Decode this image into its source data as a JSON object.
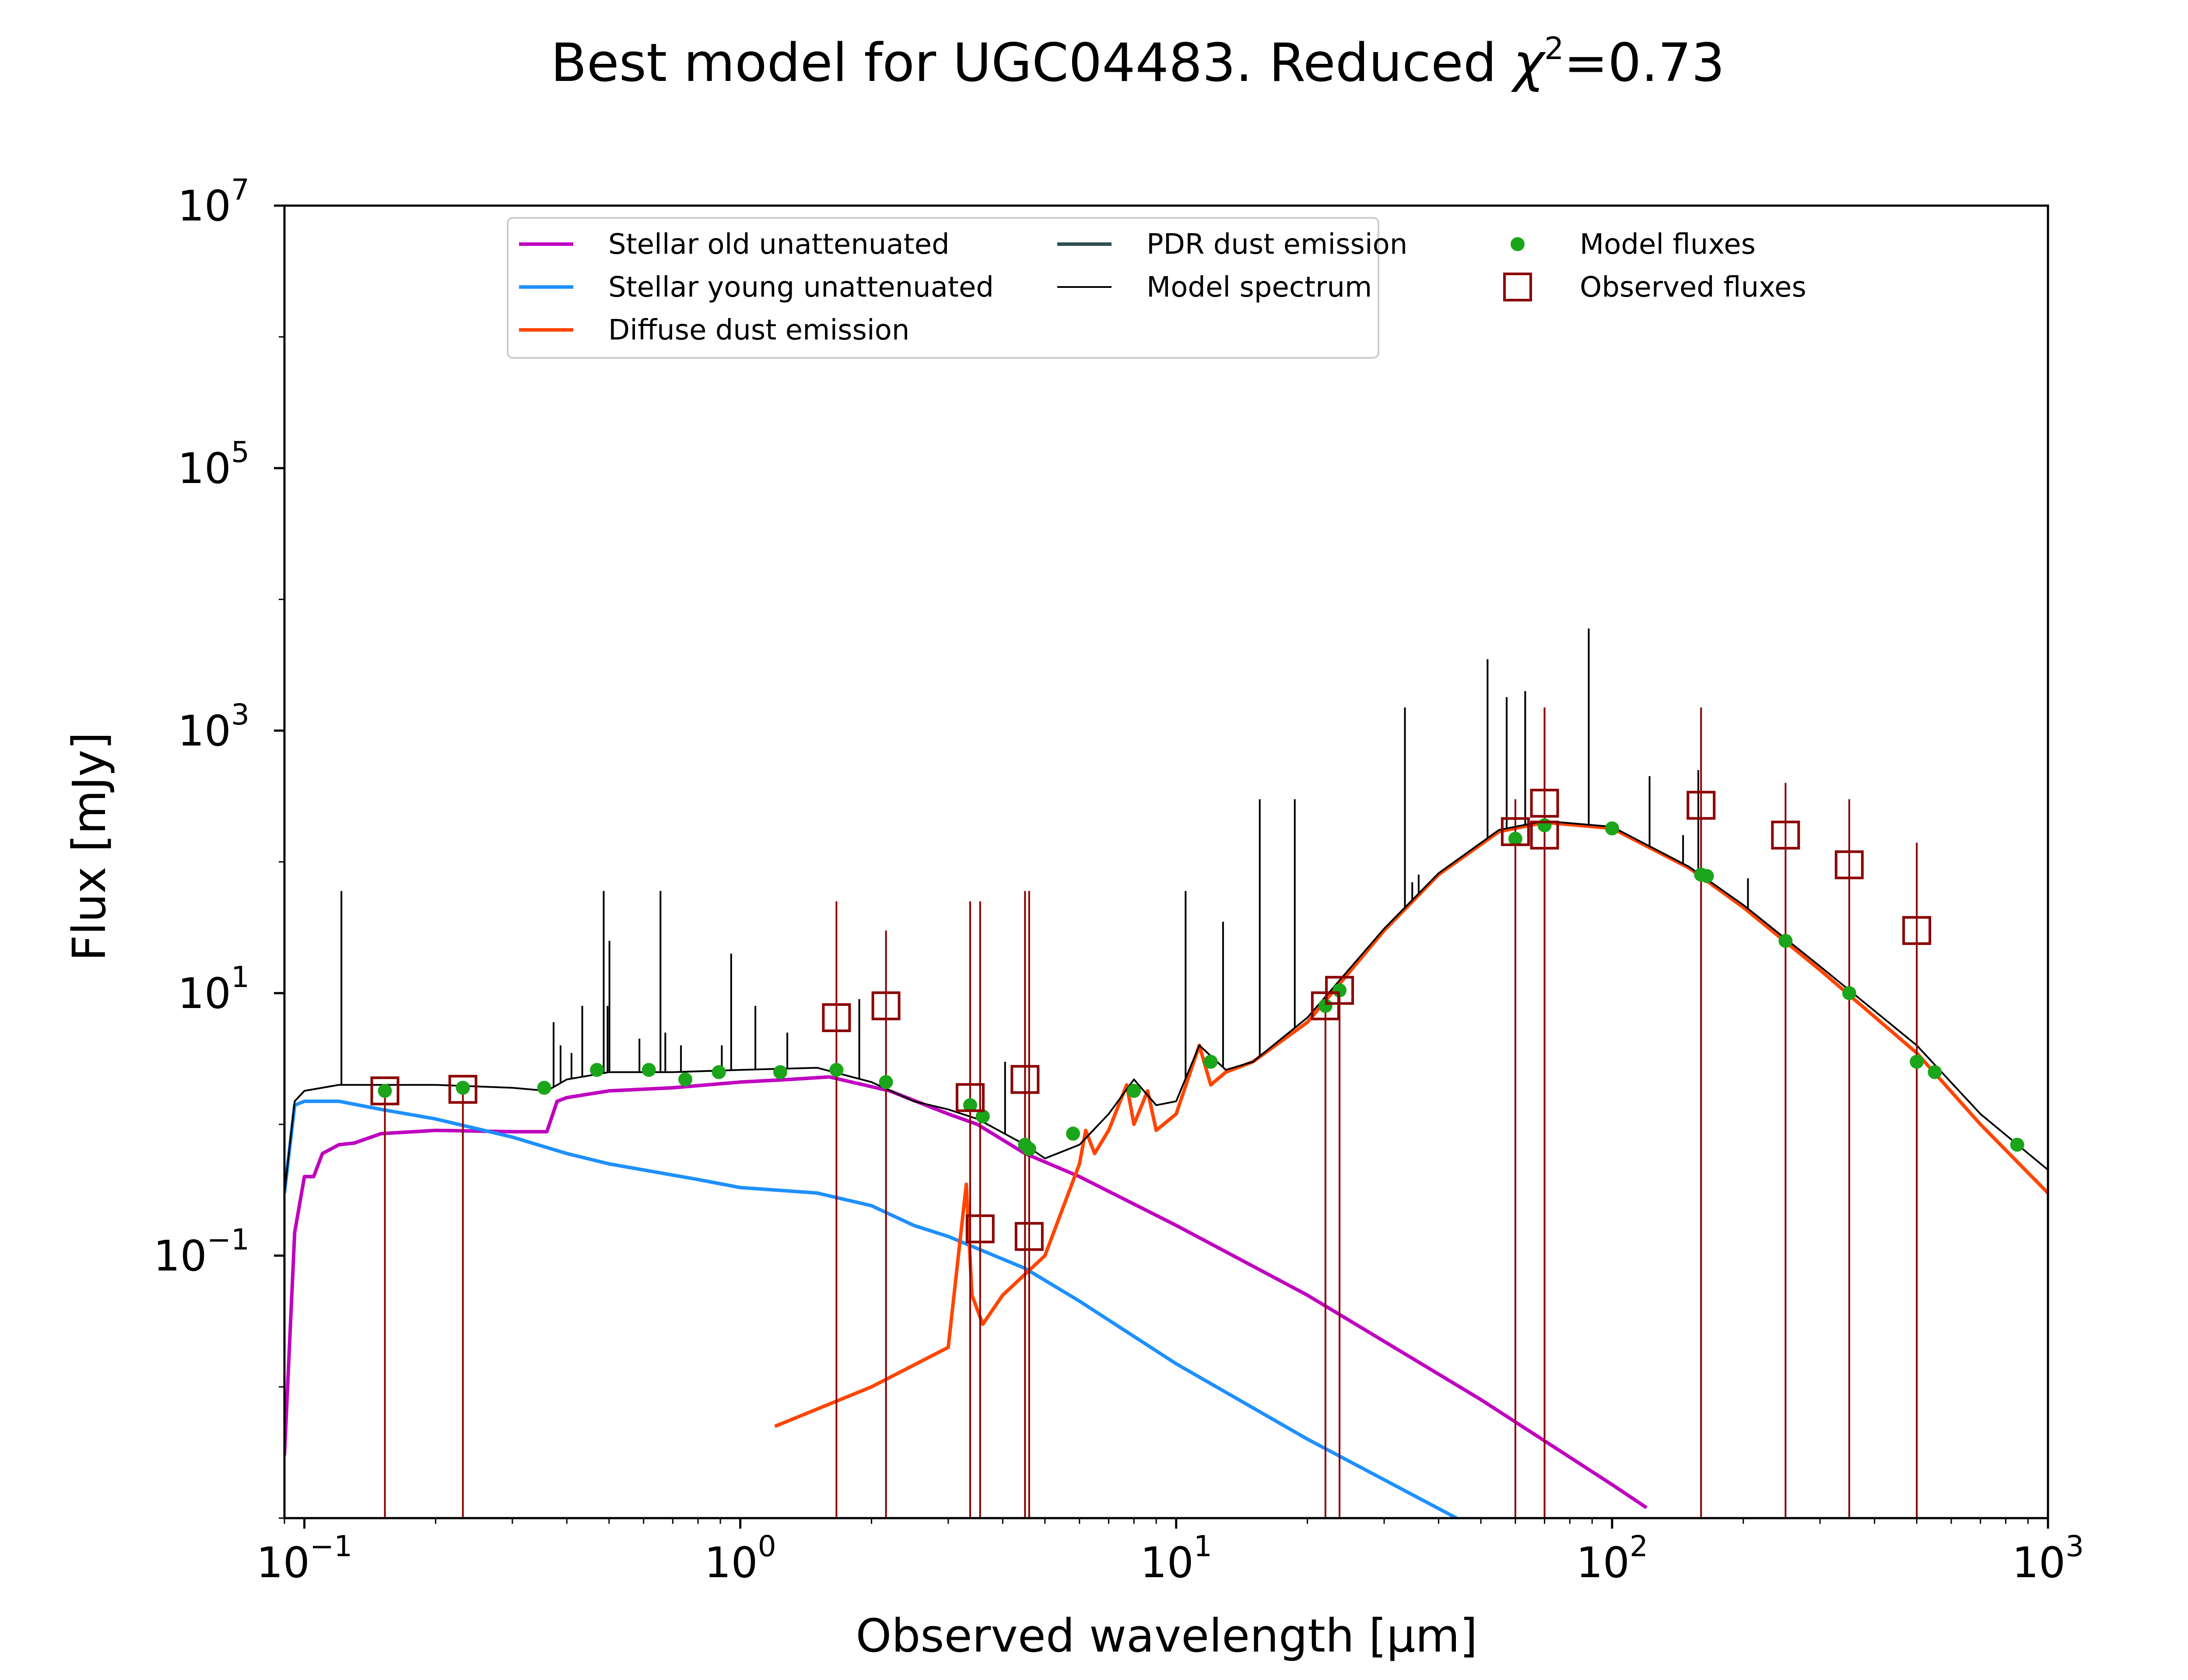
{
  "chart_data": {
    "type": "line",
    "title": "Best model for UGC04483. Reduced",
    "title_chi_symbol": "χ",
    "title_chi_exp": "2",
    "title_chi_value": "=0.73",
    "xlabel": "Observed wavelength [μm]",
    "ylabel": "Flux [mJy]",
    "x_scale": "log",
    "y_scale": "log",
    "xlim": [
      0.09,
      1000
    ],
    "ylim": [
      0.001,
      10000000
    ],
    "grid": false,
    "legend_placement": "top-center",
    "x_ticks": [
      {
        "base": "10",
        "exp": "−1",
        "value": 0.1
      },
      {
        "base": "10",
        "exp": "0",
        "value": 1
      },
      {
        "base": "10",
        "exp": "1",
        "value": 10
      },
      {
        "base": "10",
        "exp": "2",
        "value": 100
      },
      {
        "base": "10",
        "exp": "3",
        "value": 1000
      }
    ],
    "y_ticks": [
      {
        "base": "10",
        "exp": "−1",
        "value": 0.1
      },
      {
        "base": "10",
        "exp": "1",
        "value": 10
      },
      {
        "base": "10",
        "exp": "3",
        "value": 1000
      },
      {
        "base": "10",
        "exp": "5",
        "value": 100000
      },
      {
        "base": "10",
        "exp": "7",
        "value": 10000000
      }
    ],
    "legend": [
      {
        "name": "Stellar old unattenuated",
        "color": "#bf00bf",
        "kind": "line"
      },
      {
        "name": "Stellar young unattenuated",
        "color": "#1e90ff",
        "kind": "line"
      },
      {
        "name": "Diffuse dust emission",
        "color": "#ff4500",
        "kind": "line"
      },
      {
        "name": "PDR dust emission",
        "color": "#2f4f4f",
        "kind": "line"
      },
      {
        "name": "Model spectrum",
        "color": "#000000",
        "kind": "thinline"
      },
      {
        "name": "Model fluxes",
        "color": "#1aa51a",
        "kind": "dot"
      },
      {
        "name": "Observed fluxes",
        "color": "#8b0000",
        "kind": "square"
      }
    ],
    "series": [
      {
        "name": "Stellar old unattenuated",
        "color": "#bf00bf",
        "x": [
          0.09,
          0.095,
          0.1,
          0.105,
          0.11,
          0.12,
          0.13,
          0.15,
          0.2,
          0.3,
          0.36,
          0.38,
          0.4,
          0.5,
          0.7,
          1.0,
          1.3,
          1.6,
          2.2,
          3.0,
          3.5,
          4.5,
          6.0,
          10,
          20,
          50,
          100,
          120
        ],
        "y": [
          0.003,
          0.15,
          0.4,
          0.4,
          0.6,
          0.7,
          0.72,
          0.85,
          0.9,
          0.88,
          0.88,
          1.5,
          1.6,
          1.8,
          1.9,
          2.1,
          2.2,
          2.3,
          1.8,
          1.2,
          1.0,
          0.6,
          0.4,
          0.17,
          0.05,
          0.008,
          0.0018,
          0.0012
        ]
      },
      {
        "name": "Stellar young unattenuated",
        "color": "#1e90ff",
        "x": [
          0.09,
          0.095,
          0.1,
          0.12,
          0.15,
          0.2,
          0.3,
          0.4,
          0.5,
          0.8,
          1.0,
          1.5,
          2.0,
          2.5,
          3.0,
          4.5,
          6.0,
          10,
          20,
          44
        ],
        "y": [
          0.3,
          1.4,
          1.5,
          1.5,
          1.3,
          1.1,
          0.8,
          0.6,
          0.5,
          0.38,
          0.33,
          0.3,
          0.24,
          0.17,
          0.14,
          0.08,
          0.045,
          0.015,
          0.004,
          0.001
        ]
      },
      {
        "name": "Diffuse dust emission",
        "color": "#ff4500",
        "x": [
          1.2,
          2.0,
          3.0,
          3.3,
          3.4,
          3.6,
          4.0,
          5.0,
          6.0,
          6.2,
          6.5,
          7.0,
          7.7,
          8.0,
          8.6,
          9.0,
          10,
          11.3,
          12,
          13,
          15,
          20,
          30,
          40,
          55,
          70,
          100,
          150,
          200,
          300,
          500,
          700,
          1000
        ],
        "y": [
          0.005,
          0.01,
          0.02,
          0.35,
          0.05,
          0.03,
          0.05,
          0.1,
          0.5,
          0.9,
          0.6,
          0.9,
          2.0,
          1.0,
          1.8,
          0.9,
          1.2,
          4.0,
          2.0,
          2.5,
          3.0,
          6.0,
          30,
          80,
          170,
          200,
          180,
          90,
          45,
          15,
          3.5,
          1.0,
          0.3
        ]
      },
      {
        "name": "Model spectrum",
        "color": "#000000",
        "x": [
          0.09,
          0.095,
          0.1,
          0.12,
          0.15,
          0.2,
          0.3,
          0.36,
          0.4,
          0.5,
          0.7,
          1.0,
          1.5,
          2.0,
          2.5,
          3.0,
          3.5,
          4.5,
          5.0,
          6.0,
          7.0,
          8.0,
          9.0,
          10,
          11.3,
          13,
          15,
          20,
          30,
          40,
          55,
          70,
          100,
          150,
          200,
          300,
          500,
          700,
          1000
        ],
        "y": [
          0.3,
          1.5,
          1.8,
          2.0,
          2.0,
          2.0,
          1.9,
          1.8,
          2.2,
          2.5,
          2.5,
          2.6,
          2.7,
          2.1,
          1.5,
          1.3,
          1.1,
          0.7,
          0.55,
          0.7,
          1.2,
          2.2,
          1.4,
          1.5,
          4.0,
          2.6,
          3.0,
          6.5,
          31,
          82,
          175,
          205,
          185,
          92,
          47,
          16,
          4.0,
          1.2,
          0.45
        ]
      }
    ],
    "spectrum_lines": [
      {
        "x": 0.1216,
        "y": 60
      },
      {
        "x": 0.373,
        "y": 6
      },
      {
        "x": 0.387,
        "y": 4
      },
      {
        "x": 0.41,
        "y": 3.5
      },
      {
        "x": 0.434,
        "y": 8
      },
      {
        "x": 0.486,
        "y": 60
      },
      {
        "x": 0.496,
        "y": 8
      },
      {
        "x": 0.501,
        "y": 25
      },
      {
        "x": 0.587,
        "y": 4.5
      },
      {
        "x": 0.656,
        "y": 60
      },
      {
        "x": 0.673,
        "y": 5
      },
      {
        "x": 0.731,
        "y": 4
      },
      {
        "x": 0.907,
        "y": 4
      },
      {
        "x": 0.953,
        "y": 20
      },
      {
        "x": 1.083,
        "y": 8
      },
      {
        "x": 1.282,
        "y": 5
      },
      {
        "x": 1.875,
        "y": 9
      },
      {
        "x": 4.05,
        "y": 3
      },
      {
        "x": 10.51,
        "y": 60
      },
      {
        "x": 12.81,
        "y": 35
      },
      {
        "x": 15.55,
        "y": 300
      },
      {
        "x": 18.71,
        "y": 300
      },
      {
        "x": 33.48,
        "y": 1500
      },
      {
        "x": 34.8,
        "y": 70
      },
      {
        "x": 36.0,
        "y": 80
      },
      {
        "x": 51.8,
        "y": 3500
      },
      {
        "x": 57.3,
        "y": 1800
      },
      {
        "x": 63.2,
        "y": 2000
      },
      {
        "x": 88.4,
        "y": 6000
      },
      {
        "x": 121.9,
        "y": 450
      },
      {
        "x": 145.5,
        "y": 160
      },
      {
        "x": 157.7,
        "y": 500
      },
      {
        "x": 205,
        "y": 75
      }
    ],
    "model_fluxes": {
      "x": [
        0.153,
        0.231,
        0.355,
        0.469,
        0.617,
        0.748,
        0.893,
        1.235,
        1.662,
        2.159,
        3.368,
        3.6,
        4.5,
        4.6,
        5.8,
        8.0,
        12,
        22,
        23.7,
        60,
        70,
        100,
        160,
        165,
        250,
        350,
        500,
        550,
        850
      ],
      "y": [
        1.8,
        1.9,
        1.9,
        2.6,
        2.6,
        2.2,
        2.5,
        2.5,
        2.6,
        2.1,
        1.4,
        1.15,
        0.7,
        0.65,
        0.85,
        1.8,
        3.0,
        8.0,
        10.5,
        150,
        190,
        180,
        80,
        78,
        25,
        10,
        3.0,
        2.5,
        0.7
      ]
    },
    "observed_fluxes": {
      "x": [
        0.153,
        0.231,
        1.662,
        2.159,
        3.368,
        3.55,
        4.5,
        4.6,
        22,
        23.7,
        60,
        70,
        70,
        160,
        250,
        350,
        500
      ],
      "y": [
        1.8,
        1.85,
        6.5,
        8.0,
        1.6,
        0.16,
        2.2,
        0.14,
        8.0,
        10.5,
        170,
        160,
        280,
        270,
        160,
        95,
        30
      ],
      "err_hi": [
        1.8,
        1.85,
        50,
        30,
        50,
        50,
        60,
        60,
        8.0,
        10.5,
        300,
        1500,
        1500,
        1500,
        400,
        300,
        140
      ]
    }
  }
}
